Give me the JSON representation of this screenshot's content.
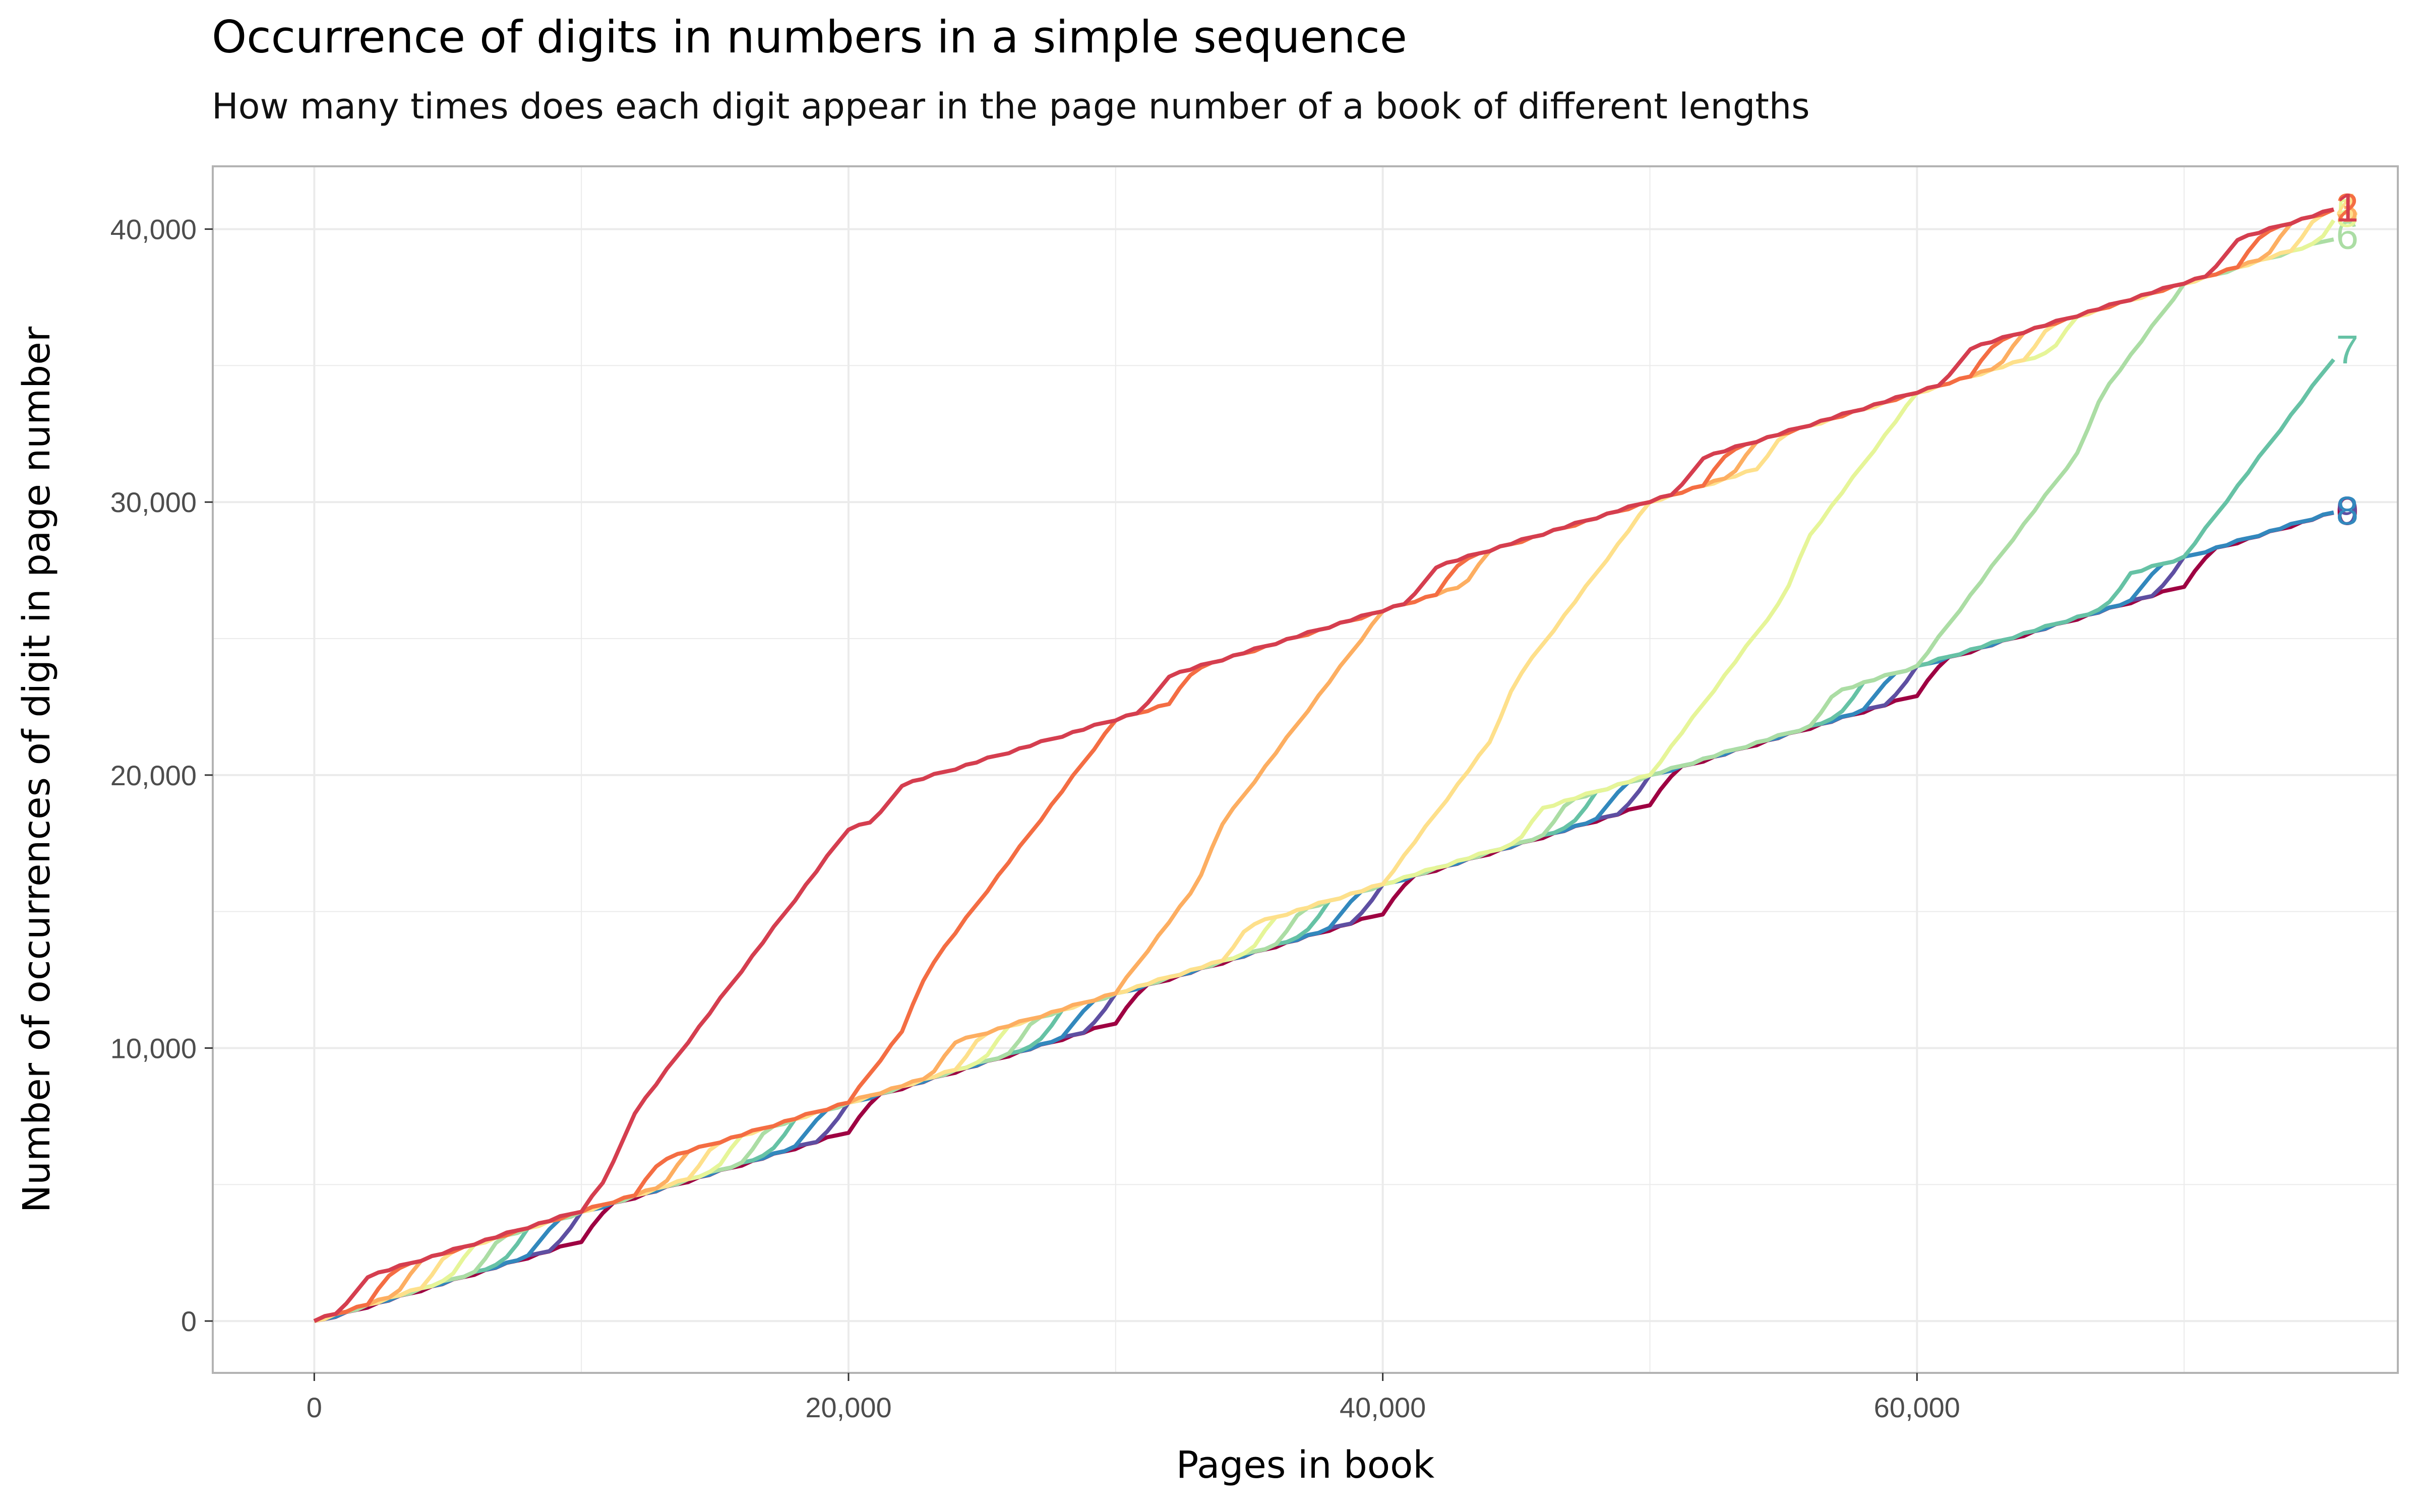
{
  "chart_data": {
    "type": "line",
    "title": "Occurrence of digits in numbers in a simple sequence",
    "subtitle": "How many times does each digit appear in the page number of a book of different lengths",
    "xlabel": "Pages in book",
    "ylabel": "Number of occurrences of digit in page number",
    "xlim": [
      -3800,
      78000
    ],
    "ylim": [
      -1900,
      42300
    ],
    "x_ticks": [
      0,
      20000,
      40000,
      60000
    ],
    "x_tick_labels": [
      "0",
      "20,000",
      "40,000",
      "60,000"
    ],
    "y_ticks": [
      0,
      10000,
      20000,
      30000,
      40000
    ],
    "y_tick_labels": [
      "0",
      "10,000",
      "20,000",
      "30,000",
      "40,000"
    ],
    "grid": true,
    "legend": "none (labels at line ends)",
    "x_max": 75800,
    "series": [
      {
        "name": "1",
        "color": "#d53e4f"
      },
      {
        "name": "2",
        "color": "#f46d43"
      },
      {
        "name": "3",
        "color": "#fdae61"
      },
      {
        "name": "4",
        "color": "#fee08b"
      },
      {
        "name": "5",
        "color": "#e6f598"
      },
      {
        "name": "6",
        "color": "#abdda4"
      },
      {
        "name": "7",
        "color": "#66c2a5"
      },
      {
        "name": "8",
        "color": "#3288bd"
      },
      {
        "name": "9",
        "color": "#5e4fa2"
      },
      {
        "name": "0",
        "color": "#9e0142"
      }
    ]
  }
}
